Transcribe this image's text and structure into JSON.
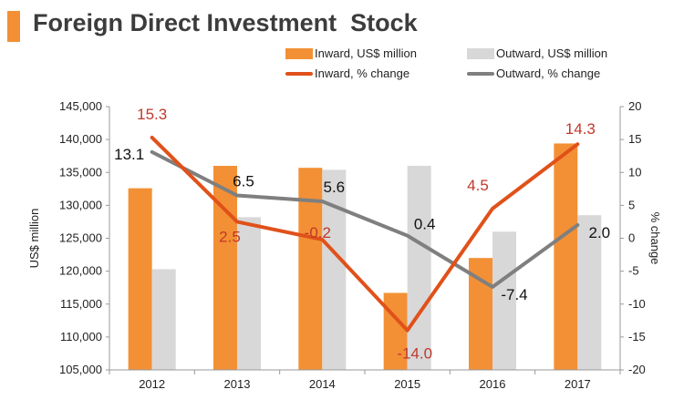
{
  "title": "Foreign Direct Investment  Stock",
  "colors": {
    "accent": "#f39035",
    "inward_bar": "#f39035",
    "outward_bar": "#d8d8d8",
    "inward_line": "#e0511a",
    "outward_line": "#7f7f7f",
    "inward_label": "#c0392b",
    "outward_label": "#111111"
  },
  "chart_data": {
    "type": "bar",
    "title": "Foreign Direct Investment  Stock",
    "categories": [
      "2012",
      "2013",
      "2014",
      "2015",
      "2016",
      "2017"
    ],
    "ylabel": "US$ million",
    "y2label": "% change",
    "ylim": [
      105000,
      145000
    ],
    "y2lim": [
      -20,
      20
    ],
    "yticks": [
      "105,000",
      "110,000",
      "115,000",
      "120,000",
      "125,000",
      "130,000",
      "135,000",
      "140,000",
      "145,000"
    ],
    "y2ticks": [
      "20",
      "15",
      "10",
      "5",
      "0",
      "-5",
      "-10",
      "-15",
      "-20"
    ],
    "series": [
      {
        "name": "Inward, US$ million",
        "kind": "bar",
        "axis": "left",
        "values": [
          132600,
          136000,
          135700,
          116700,
          122000,
          139400
        ]
      },
      {
        "name": "Outward, US$ million",
        "kind": "bar",
        "axis": "left",
        "values": [
          120300,
          128200,
          135400,
          136000,
          126000,
          128500
        ]
      },
      {
        "name": "Inward, % change",
        "kind": "line",
        "axis": "right",
        "values": [
          15.3,
          2.5,
          -0.2,
          -14.0,
          4.5,
          14.3
        ],
        "labels": [
          "15.3",
          "2.5",
          "-0.2",
          "-14.0",
          "4.5",
          "14.3"
        ]
      },
      {
        "name": "Outward, % change",
        "kind": "line",
        "axis": "right",
        "values": [
          13.1,
          6.5,
          5.6,
          0.4,
          -7.4,
          2.0
        ],
        "labels": [
          "13.1",
          "6.5",
          "5.6",
          "0.4",
          "-7.4",
          "2.0"
        ]
      }
    ],
    "legend": [
      "Inward, US$ million",
      "Outward, US$ million",
      "Inward, % change",
      "Outward, % change"
    ],
    "legend_position": "top-right",
    "grid": false
  }
}
